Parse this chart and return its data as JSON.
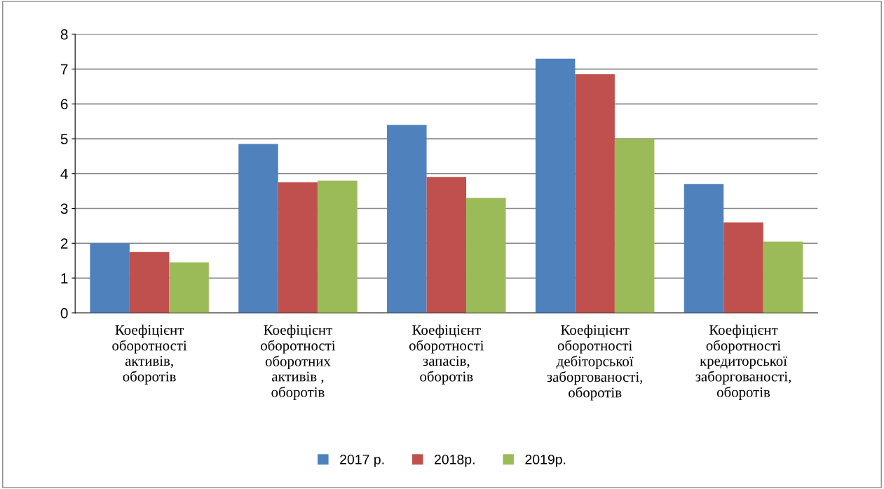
{
  "chart_data": {
    "type": "bar",
    "categories": [
      "Коефіцієнт\nоборотності\nактивів,\nоборотів",
      "Коефіцієнт\nоборотності\nоборотних\nактивів ,\nоборотів",
      "Коефіцієнт\nоборотності\nзапасів,\nоборотів",
      "Коефіцієнт\nоборотності\nдебіторської\nзаборгованості,\nоборотів",
      "Коефіцієнт\nоборотності\nкредиторської\nзаборгованості,\nоборотів"
    ],
    "series": [
      {
        "name": "2017 р.",
        "color": "#4f81bd",
        "values": [
          2.0,
          4.85,
          5.4,
          7.3,
          3.7
        ]
      },
      {
        "name": "2018р.",
        "color": "#c0504d",
        "values": [
          1.75,
          3.75,
          3.9,
          6.85,
          2.6
        ]
      },
      {
        "name": "2019р.",
        "color": "#9bbb59",
        "values": [
          1.45,
          3.8,
          3.3,
          5.0,
          2.05
        ]
      }
    ],
    "ylim": [
      0,
      8
    ],
    "yticks": [
      0,
      1,
      2,
      3,
      4,
      5,
      6,
      7,
      8
    ],
    "grid": "y",
    "legend": "bottom"
  }
}
